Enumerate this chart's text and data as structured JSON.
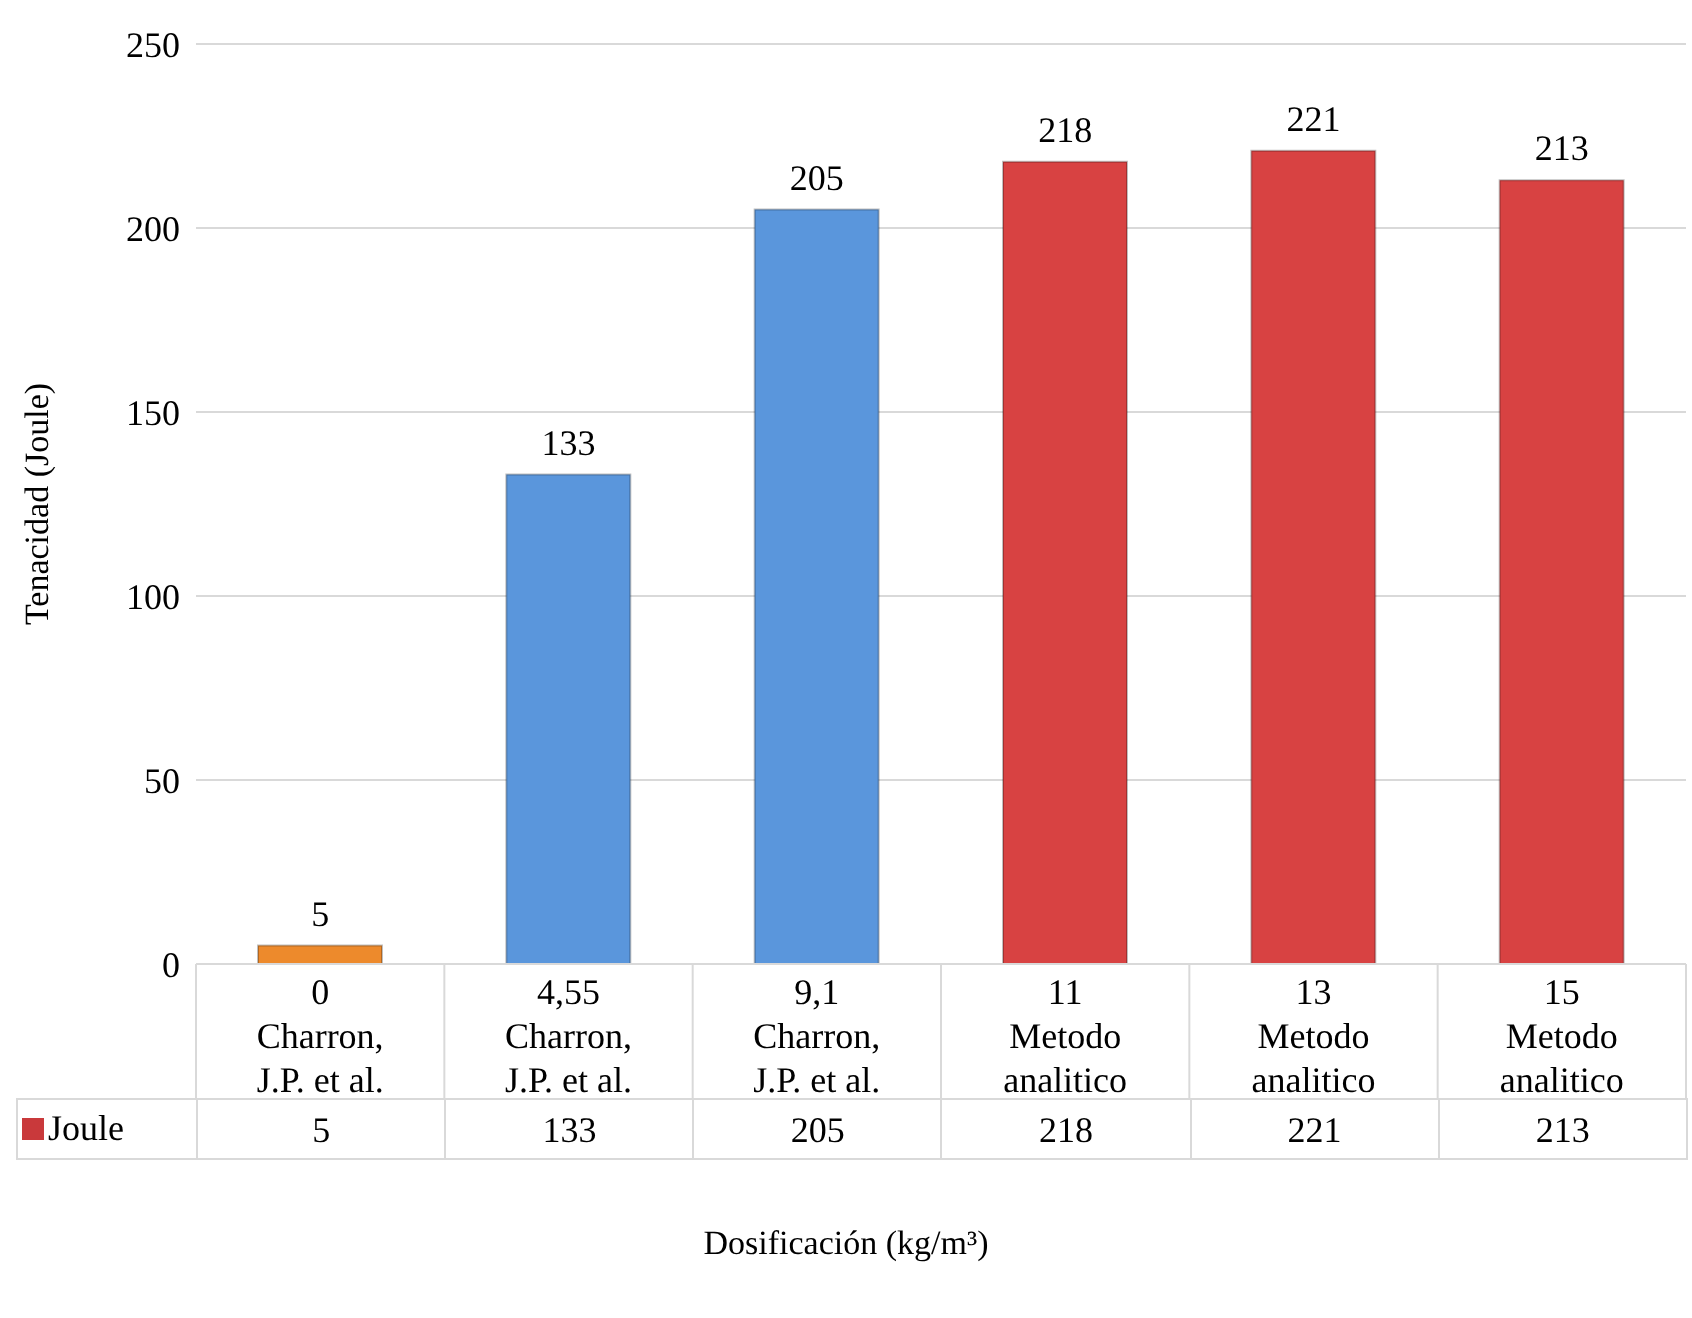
{
  "chart_data": {
    "type": "bar",
    "xlabel": "Dosificación (kg/m³)",
    "ylabel": "Tenacidad (Joule)",
    "categories": [
      "0\nCharron, J.P. et al.",
      "4,55\nCharron, J.P. et al.",
      "9,1\nCharron, J.P. et al.",
      "11\nMetodo analitico",
      "13\nMetodo analitico",
      "15\nMetodo analitico"
    ],
    "series": [
      {
        "name": "Joule",
        "color": "#c9393b",
        "colors": [
          "#ed8a2c",
          "#5a96dc",
          "#5a96dc",
          "#d84242",
          "#d84242",
          "#d84242"
        ],
        "values": [
          5,
          133,
          205,
          218,
          221,
          213
        ]
      }
    ],
    "ylim": [
      0,
      250
    ],
    "yticks": [
      0,
      50,
      100,
      150,
      200,
      250
    ],
    "grid": "y",
    "data_labels": true,
    "legend": "bottom",
    "annotations": [
      {
        "text": "5",
        "x": "0\nCharron, J.P. et al.",
        "y": 5
      },
      {
        "text": "133",
        "x": "4,55\nCharron, J.P. et al.",
        "y": 133
      },
      {
        "text": "205",
        "x": "9,1\nCharron, J.P. et al.",
        "y": 205
      },
      {
        "text": "218",
        "x": "11\nMetodo analitico",
        "y": 218
      },
      {
        "text": "221",
        "x": "13\nMetodo analitico",
        "y": 221
      },
      {
        "text": "213",
        "x": "15\nMetodo analitico",
        "y": 213
      }
    ]
  }
}
